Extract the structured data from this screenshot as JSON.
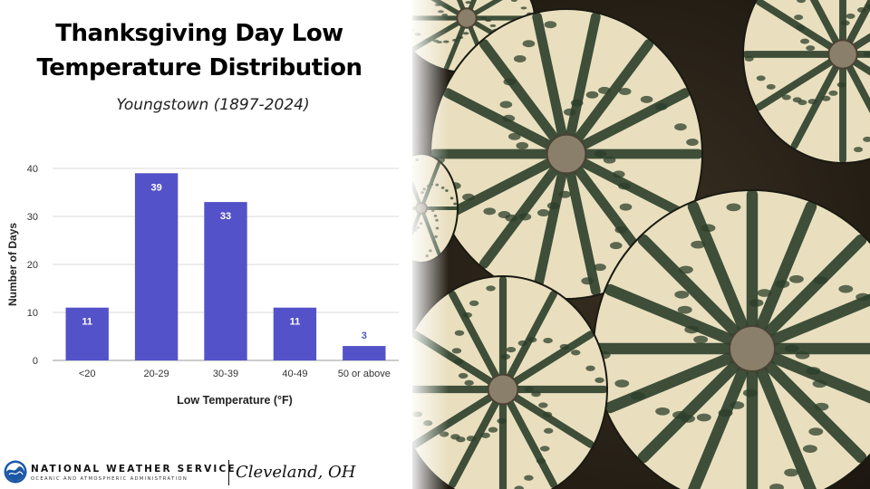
{
  "title_line1": "Thanksgiving Day Low",
  "title_line2": "Temperature Distribution",
  "subtitle": "Youngstown (1897-2024)",
  "chart_data": {
    "type": "bar",
    "categories": [
      "<20",
      "20-29",
      "30-39",
      "40-49",
      "50 or above"
    ],
    "values": [
      11,
      39,
      33,
      11,
      3
    ],
    "xlabel": "Low Temperature (°F)",
    "ylabel": "Number of Days",
    "ylim": [
      0,
      40
    ],
    "yticks": [
      0,
      10,
      20,
      30,
      40
    ],
    "grid": true,
    "legend": "none",
    "bar_color": "#5452c8"
  },
  "footer": {
    "agency": "NATIONAL WEATHER SERVICE",
    "agency_sub": "OCEANIC AND ATMOSPHERIC ADMINISTRATION",
    "office": "Cleveland, OH"
  },
  "colors": {
    "bar": "#5452c8",
    "gourd_cream": "#e9dfbf",
    "gourd_green": "#2c3f2a",
    "background_dark": "#2c2418"
  }
}
